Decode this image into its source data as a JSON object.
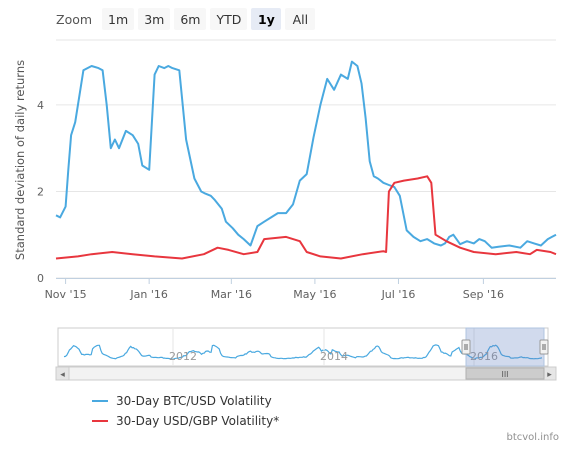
{
  "zoom": {
    "label": "Zoom",
    "buttons": [
      "1m",
      "3m",
      "6m",
      "YTD",
      "1y",
      "All"
    ],
    "active": "1y"
  },
  "chart_data": {
    "type": "line",
    "ylabel": "Standard deviation of daily returns",
    "ylim": [
      0,
      5.5
    ],
    "yticks": [
      0,
      2,
      4
    ],
    "x_range": [
      "2015-10-25",
      "2016-10-24"
    ],
    "xticks": [
      {
        "date": "2015-11-01",
        "label": "Nov '15"
      },
      {
        "date": "2016-01-01",
        "label": "Jan '16"
      },
      {
        "date": "2016-03-01",
        "label": "Mar '16"
      },
      {
        "date": "2016-05-01",
        "label": "May '16"
      },
      {
        "date": "2016-07-01",
        "label": "Jul '16"
      },
      {
        "date": "2016-09-01",
        "label": "Sep '16"
      }
    ],
    "grid": "horizontal",
    "legend_position": "bottom-left",
    "series": [
      {
        "name": "30-Day BTC/USD Volatility",
        "color": "#4aa9e0",
        "x": [
          "2015-10-25",
          "2015-10-28",
          "2015-11-01",
          "2015-11-03",
          "2015-11-05",
          "2015-11-08",
          "2015-11-11",
          "2015-11-14",
          "2015-11-17",
          "2015-11-20",
          "2015-11-25",
          "2015-11-28",
          "2015-12-01",
          "2015-12-04",
          "2015-12-07",
          "2015-12-10",
          "2015-12-15",
          "2015-12-20",
          "2015-12-24",
          "2015-12-27",
          "2016-01-01",
          "2016-01-05",
          "2016-01-08",
          "2016-01-12",
          "2016-01-15",
          "2016-01-18",
          "2016-01-23",
          "2016-01-28",
          "2016-02-03",
          "2016-02-08",
          "2016-02-11",
          "2016-02-15",
          "2016-02-18",
          "2016-02-23",
          "2016-02-26",
          "2016-03-02",
          "2016-03-06",
          "2016-03-10",
          "2016-03-15",
          "2016-03-20",
          "2016-03-25",
          "2016-03-30",
          "2016-04-04",
          "2016-04-10",
          "2016-04-15",
          "2016-04-20",
          "2016-04-25",
          "2016-04-30",
          "2016-05-05",
          "2016-05-10",
          "2016-05-15",
          "2016-05-20",
          "2016-05-25",
          "2016-05-28",
          "2016-06-01",
          "2016-06-04",
          "2016-06-07",
          "2016-06-10",
          "2016-06-13",
          "2016-06-16",
          "2016-06-20",
          "2016-06-24",
          "2016-06-28",
          "2016-07-02",
          "2016-07-07",
          "2016-07-12",
          "2016-07-17",
          "2016-07-22",
          "2016-07-27",
          "2016-08-01",
          "2016-08-04",
          "2016-08-07",
          "2016-08-10",
          "2016-08-15",
          "2016-08-20",
          "2016-08-25",
          "2016-08-29",
          "2016-09-02",
          "2016-09-07",
          "2016-09-12",
          "2016-09-20",
          "2016-09-28",
          "2016-10-03",
          "2016-10-08",
          "2016-10-13",
          "2016-10-18",
          "2016-10-21",
          "2016-10-24"
        ],
        "y": [
          1.45,
          1.4,
          1.65,
          2.5,
          3.3,
          3.6,
          4.2,
          4.8,
          4.85,
          4.9,
          4.85,
          4.8,
          4.0,
          3.0,
          3.2,
          3.0,
          3.4,
          3.3,
          3.1,
          2.6,
          2.5,
          4.7,
          4.9,
          4.85,
          4.9,
          4.85,
          4.8,
          3.2,
          2.3,
          2.0,
          1.95,
          1.9,
          1.8,
          1.6,
          1.3,
          1.15,
          1.0,
          0.9,
          0.75,
          1.2,
          1.3,
          1.4,
          1.5,
          1.5,
          1.7,
          2.25,
          2.4,
          3.25,
          4.0,
          4.6,
          4.35,
          4.7,
          4.6,
          5.0,
          4.9,
          4.5,
          3.7,
          2.7,
          2.35,
          2.3,
          2.2,
          2.15,
          2.1,
          1.9,
          1.1,
          0.95,
          0.85,
          0.9,
          0.8,
          0.75,
          0.8,
          0.95,
          1.0,
          0.78,
          0.85,
          0.8,
          0.9,
          0.85,
          0.7,
          0.72,
          0.75,
          0.7,
          0.85,
          0.8,
          0.75,
          0.9,
          0.95,
          1.0
        ]
      },
      {
        "name": "30-Day USD/GBP Volatility*",
        "color": "#e8363e",
        "x": [
          "2015-10-25",
          "2015-11-10",
          "2015-11-20",
          "2015-12-05",
          "2015-12-20",
          "2016-01-05",
          "2016-01-25",
          "2016-02-10",
          "2016-02-20",
          "2016-02-28",
          "2016-03-10",
          "2016-03-20",
          "2016-03-25",
          "2016-04-10",
          "2016-04-20",
          "2016-04-25",
          "2016-05-05",
          "2016-05-20",
          "2016-06-05",
          "2016-06-20",
          "2016-06-22",
          "2016-06-24",
          "2016-06-28",
          "2016-07-05",
          "2016-07-15",
          "2016-07-22",
          "2016-07-25",
          "2016-07-28",
          "2016-08-05",
          "2016-08-15",
          "2016-08-25",
          "2016-09-10",
          "2016-09-25",
          "2016-10-05",
          "2016-10-10",
          "2016-10-20",
          "2016-10-24"
        ],
        "y": [
          0.45,
          0.5,
          0.55,
          0.6,
          0.55,
          0.5,
          0.45,
          0.55,
          0.7,
          0.65,
          0.55,
          0.6,
          0.9,
          0.95,
          0.85,
          0.6,
          0.5,
          0.45,
          0.55,
          0.62,
          0.6,
          2.0,
          2.2,
          2.25,
          2.3,
          2.35,
          2.2,
          1.0,
          0.85,
          0.7,
          0.6,
          0.55,
          0.6,
          0.55,
          0.65,
          0.6,
          0.55
        ]
      }
    ]
  },
  "navigator": {
    "xlabels": [
      "2012",
      "2014",
      "2016"
    ],
    "scroll_left_arrow": "◂",
    "scroll_right_arrow": "▸",
    "scroll_grip": "III"
  },
  "credit": "btcvol.info"
}
